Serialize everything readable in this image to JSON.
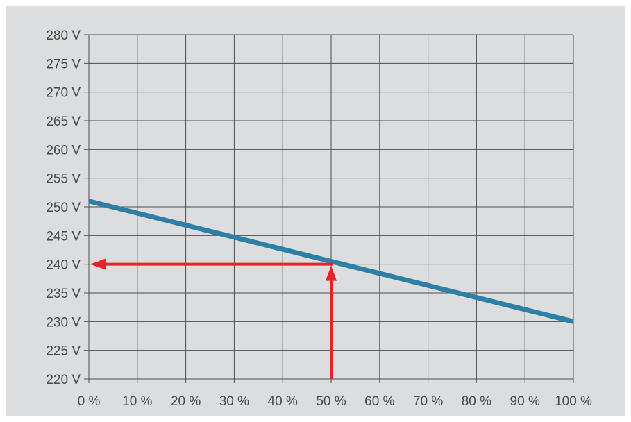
{
  "chart_data": {
    "type": "line",
    "title": "",
    "xlabel": "",
    "ylabel": "",
    "xlim": [
      0,
      100
    ],
    "ylim": [
      220,
      280
    ],
    "x_ticks": [
      0,
      10,
      20,
      30,
      40,
      50,
      60,
      70,
      80,
      90,
      100
    ],
    "y_ticks": [
      220,
      225,
      230,
      235,
      240,
      245,
      250,
      255,
      260,
      265,
      270,
      275,
      280
    ],
    "x_tick_labels": [
      "0 %",
      "10 %",
      "20 %",
      "30 %",
      "40 %",
      "50 %",
      "60 %",
      "70 %",
      "80 %",
      "90 %",
      "100 %"
    ],
    "y_tick_labels": [
      "220 V",
      "225 V",
      "230 V",
      "235 V",
      "240 V",
      "245 V",
      "250 V",
      "255 V",
      "260 V",
      "265 V",
      "270 V",
      "275 V",
      "280 V"
    ],
    "grid": true,
    "series": [
      {
        "x": [
          0,
          100
        ],
        "y": [
          251,
          230
        ],
        "color": "#2e7fa6"
      }
    ],
    "annotation": {
      "type": "read-off-arrows",
      "x": 50,
      "y": 240,
      "color": "#e8222b"
    }
  }
}
